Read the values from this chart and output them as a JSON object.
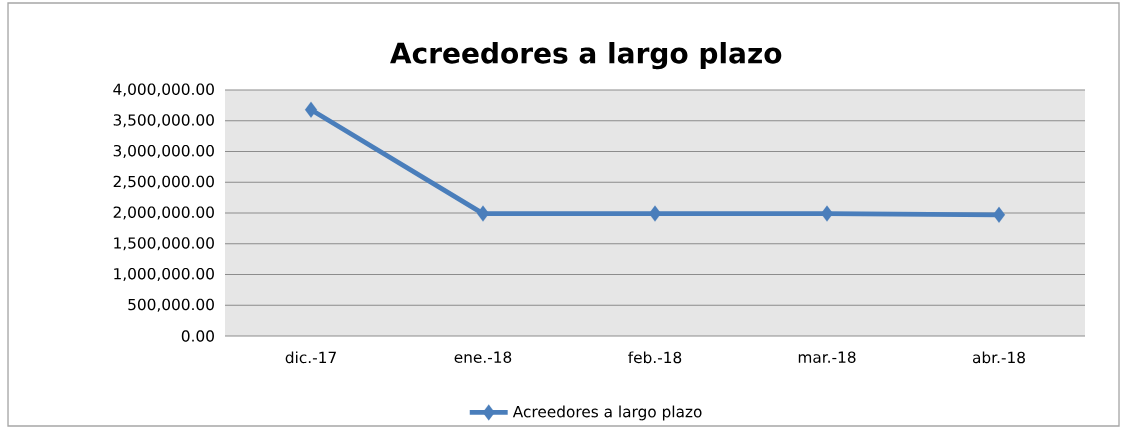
{
  "chart_data": {
    "type": "line",
    "title": "Acreedores a largo plazo",
    "categories": [
      "dic.-17",
      "ene.-18",
      "feb.-18",
      "mar.-18",
      "abr.-18"
    ],
    "series": [
      {
        "name": "Acreedores a largo plazo",
        "color": "#4a7ebb",
        "values": [
          3680000,
          1990000,
          1990000,
          1990000,
          1970000
        ]
      }
    ],
    "ylim": [
      0,
      4000000
    ],
    "yticks": [
      {
        "value": 0,
        "label": "0.00"
      },
      {
        "value": 500000,
        "label": "500,000.00"
      },
      {
        "value": 1000000,
        "label": "1,000,000.00"
      },
      {
        "value": 1500000,
        "label": "1,500,000.00"
      },
      {
        "value": 2000000,
        "label": "2,000,000.00"
      },
      {
        "value": 2500000,
        "label": "2,500,000.00"
      },
      {
        "value": 3000000,
        "label": "3,000,000.00"
      },
      {
        "value": 3500000,
        "label": "3,500,000.00"
      },
      {
        "value": 4000000,
        "label": "4,000,000.00"
      }
    ],
    "grid": "y",
    "legend": "bottom",
    "marker": "diamond",
    "line_style": "solid"
  }
}
